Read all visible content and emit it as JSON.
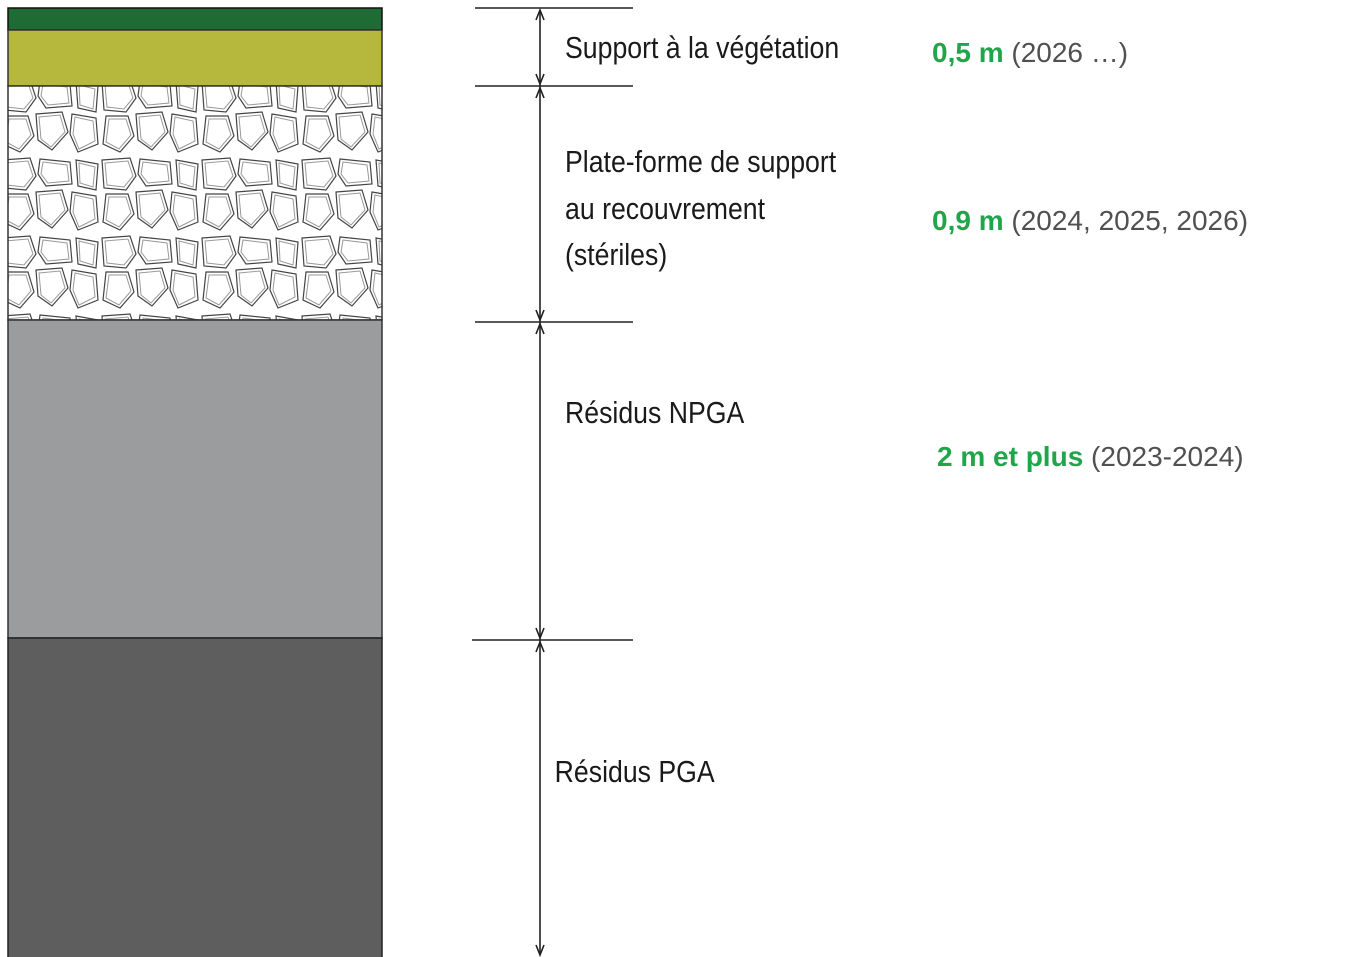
{
  "layers": [
    {
      "label": [
        "Support à la végétation"
      ],
      "thickness": "0,5 m",
      "years": "(2026 …)"
    },
    {
      "label": [
        "Plate-forme de support",
        "au recouvrement",
        "(stériles)"
      ],
      "thickness": "0,9 m",
      "years": "(2024, 2025, 2026)"
    },
    {
      "label": [
        "Résidus NPGA"
      ],
      "thickness": "2 m et plus",
      "years": "(2023-2024)"
    },
    {
      "label": [
        "Résidus PGA"
      ]
    }
  ]
}
